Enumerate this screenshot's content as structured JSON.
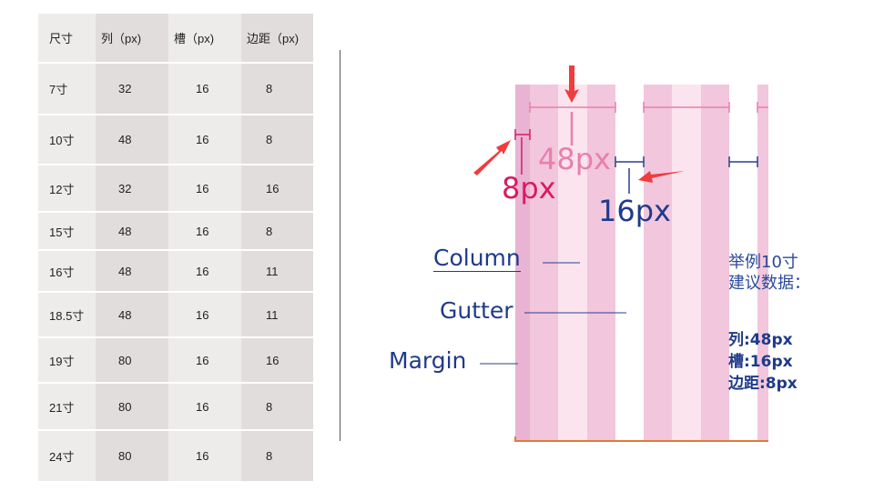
{
  "table": {
    "headers": [
      "尺寸",
      "列（px)",
      "槽（px)",
      "边距（px)"
    ],
    "rows": [
      [
        "7寸",
        "32",
        "16",
        "8"
      ],
      [
        "10寸",
        "48",
        "16",
        "8"
      ],
      [
        "12寸",
        "32",
        "16",
        "16"
      ],
      [
        "15寸",
        "48",
        "16",
        "8"
      ],
      [
        "16寸",
        "48",
        "16",
        "11"
      ],
      [
        "18.5寸",
        "48",
        "16",
        "11"
      ],
      [
        "19寸",
        "80",
        "16",
        "16"
      ],
      [
        "21寸",
        "80",
        "16",
        "8"
      ],
      [
        "24寸",
        "80",
        "16",
        "8"
      ]
    ]
  },
  "diagram": {
    "column_width_label": "48px",
    "margin_label": "8px",
    "gutter_label": "16px",
    "column_label": "Column",
    "gutter_name": "Gutter",
    "margin_name": "Margin",
    "example_title_1": "举例10寸",
    "example_title_2": "建议数据：",
    "example_column": "列:48px",
    "example_gutter": "槽:16px",
    "example_margin": "边距:8px",
    "colors": {
      "margin": "#e9b3d3",
      "column_dark": "#f2c6dc",
      "column_light": "#fbe4ee",
      "arrow": "#f03c3c",
      "blue": "#1f3a8a",
      "pink_label": "#e87fae",
      "magenta": "#d81b60",
      "baseline": "#e07b39"
    }
  }
}
